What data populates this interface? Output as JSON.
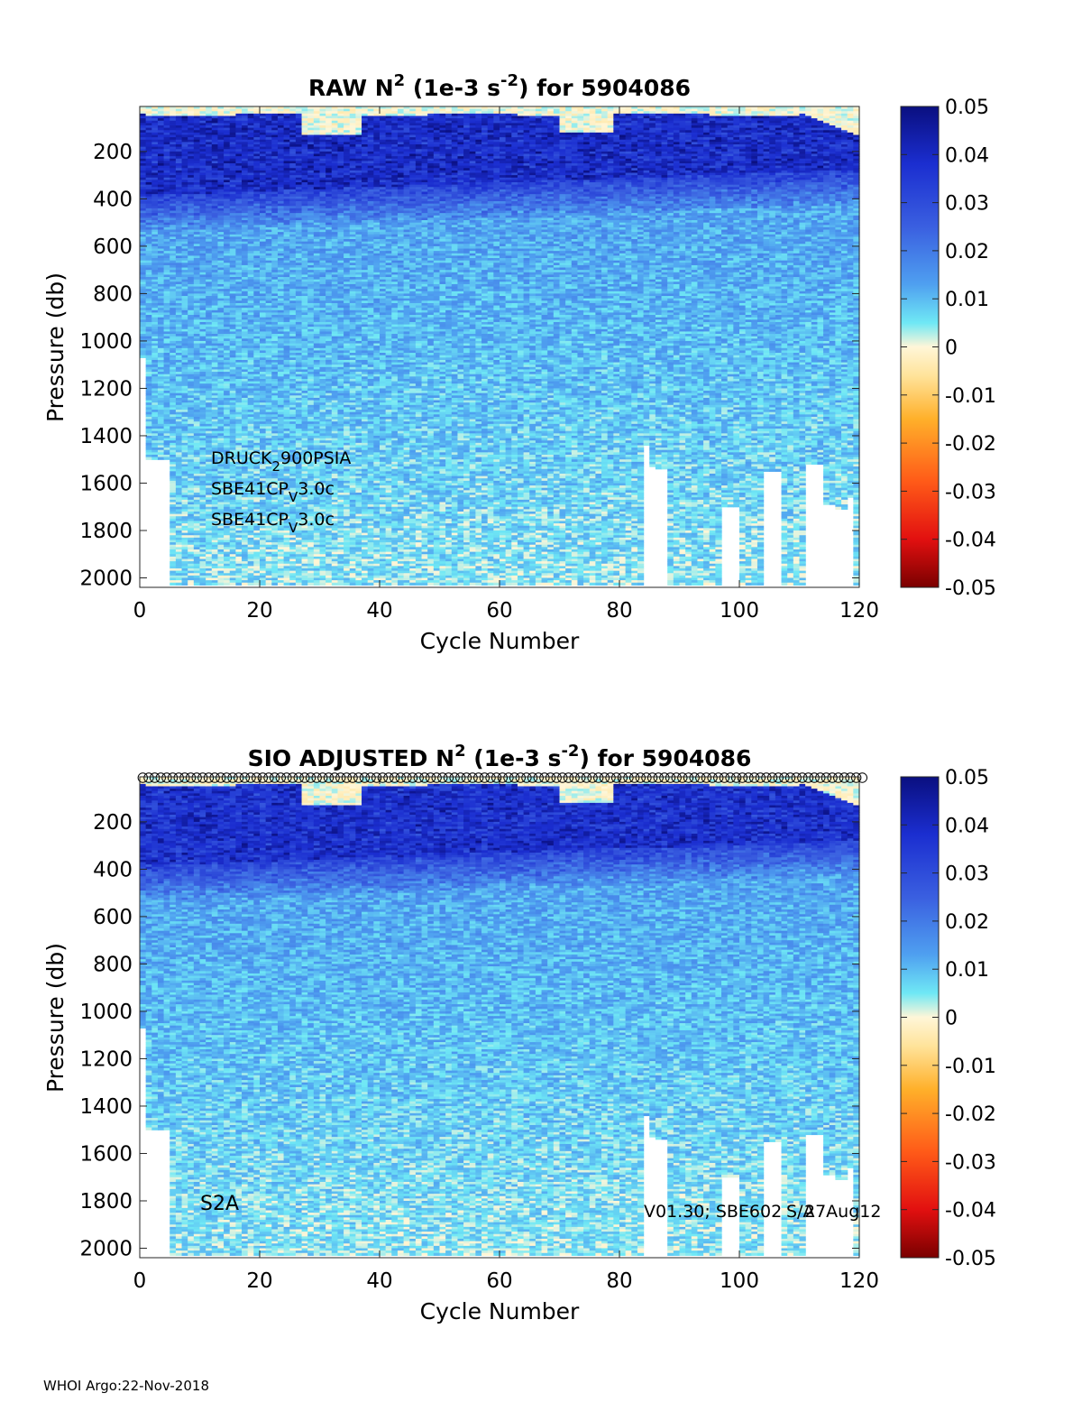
{
  "footer": "WHOI Argo:22-Nov-2018",
  "colorbar": {
    "range": [
      -0.05,
      0.05
    ],
    "ticks": [
      0.05,
      0.04,
      0.03,
      0.02,
      0.01,
      0,
      -0.01,
      -0.02,
      -0.03,
      -0.04,
      -0.05
    ],
    "tick_labels": [
      "0.05",
      "0.04",
      "0.03",
      "0.02",
      "0.01",
      "0",
      "-0.01",
      "-0.02",
      "-0.03",
      "-0.04",
      "-0.05"
    ]
  },
  "chart_data": [
    {
      "type": "heatmap",
      "title_parts": {
        "pre": "RAW N",
        "sup1": "2",
        "mid": " (1e-3 s",
        "sup2": "-2",
        "post": ") for 5904086"
      },
      "xlabel": "Cycle Number",
      "ylabel": "Pressure (db)",
      "xlim": [
        0,
        120
      ],
      "ylim": [
        2040,
        10
      ],
      "xticks": [
        0,
        20,
        40,
        60,
        80,
        100,
        120
      ],
      "yticks": [
        200,
        400,
        600,
        800,
        1000,
        1200,
        1400,
        1600,
        1800,
        2000
      ],
      "sensor_notes": [
        {
          "pre": "DRUCK",
          "sub": "2",
          "post": "900PSIA"
        },
        {
          "pre": "SBE41CP",
          "sub": "V",
          "post": "3.0c"
        },
        {
          "pre": "SBE41CP",
          "sub": "V",
          "post": "3.0c"
        }
      ]
    },
    {
      "type": "heatmap",
      "title_parts": {
        "pre": "SIO  ADJUSTED N",
        "sup1": "2",
        "mid": " (1e-3 s",
        "sup2": "-2",
        "post": ") for 5904086"
      },
      "xlabel": "Cycle Number",
      "ylabel": "Pressure (db)",
      "xlim": [
        0,
        120
      ],
      "ylim": [
        2040,
        10
      ],
      "xticks": [
        0,
        20,
        40,
        60,
        80,
        100,
        120
      ],
      "yticks": [
        200,
        400,
        600,
        800,
        1000,
        1200,
        1400,
        1600,
        1800,
        2000
      ],
      "label_left": "S2A",
      "label_right_a": "V01.30; SBE602",
      "label_right_b": "27Aug12",
      "label_right_c": "S/A"
    }
  ]
}
